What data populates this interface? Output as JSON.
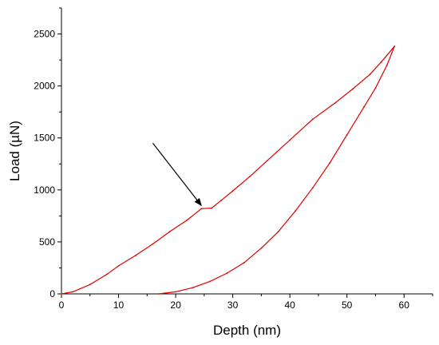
{
  "chart_data": {
    "type": "line",
    "title": "",
    "xlabel": "Depth (nm)",
    "ylabel": "Load (µN)",
    "xlim": [
      0,
      65
    ],
    "ylim": [
      0,
      2750
    ],
    "x_ticks": [
      0,
      10,
      20,
      30,
      40,
      50,
      60
    ],
    "y_ticks": [
      0,
      500,
      1000,
      1500,
      2000,
      2500
    ],
    "grid": false,
    "legend": "none",
    "series": [
      {
        "segment": "loading",
        "color": "#e00000",
        "x": [
          0,
          2,
          5,
          8,
          10,
          13,
          16,
          19,
          22,
          24.5,
          26.3,
          28,
          30,
          33,
          36,
          40,
          44,
          48,
          51,
          54,
          56,
          58.3
        ],
        "y": [
          0,
          20,
          90,
          190,
          270,
          370,
          480,
          600,
          710,
          820,
          825,
          900,
          990,
          1130,
          1280,
          1480,
          1680,
          1840,
          1970,
          2110,
          2230,
          2380
        ]
      },
      {
        "segment": "unloading",
        "color": "#e00000",
        "x": [
          58.3,
          57,
          55,
          53,
          50,
          47,
          44,
          41,
          38,
          35,
          32,
          29,
          26,
          23,
          20,
          17
        ],
        "y": [
          2380,
          2200,
          1980,
          1800,
          1530,
          1260,
          1020,
          800,
          600,
          440,
          300,
          200,
          120,
          60,
          20,
          0
        ]
      }
    ],
    "annotations": [
      {
        "type": "arrow",
        "from": [
          16,
          1450
        ],
        "to": [
          24.5,
          850
        ],
        "color": "#000000"
      }
    ]
  }
}
